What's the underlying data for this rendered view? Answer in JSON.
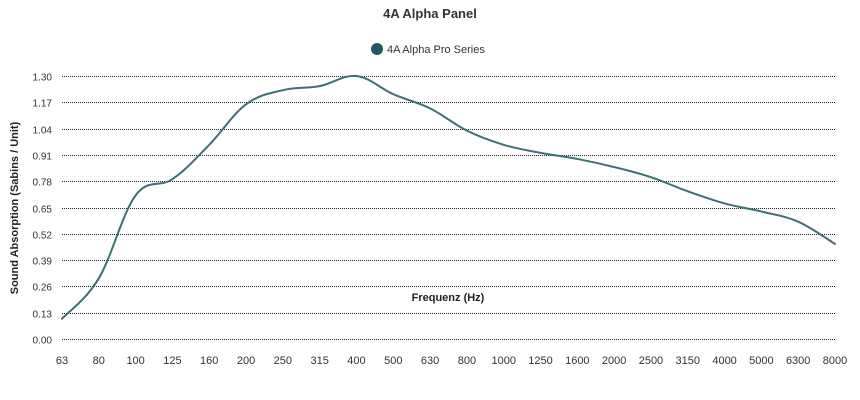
{
  "chart_data": {
    "type": "line",
    "title": "4A Alpha Panel",
    "xlabel": "Frequenz (Hz)",
    "ylabel": "Sound Absorption (Sabins / Unit)",
    "categories": [
      "63",
      "80",
      "100",
      "125",
      "160",
      "200",
      "250",
      "315",
      "400",
      "500",
      "630",
      "800",
      "1000",
      "1250",
      "1600",
      "2000",
      "2500",
      "3150",
      "4000",
      "5000",
      "6300",
      "8000"
    ],
    "x_scale": "log",
    "ylim": [
      0,
      1.3
    ],
    "y_ticks": [
      "0.00",
      "0.13",
      "0.26",
      "0.39",
      "0.52",
      "0.65",
      "0.78",
      "0.91",
      "1.04",
      "1.17",
      "1.30"
    ],
    "grid": true,
    "legend": {
      "position": "top-center",
      "entries": [
        "4A Alpha Pro Series"
      ]
    },
    "series": [
      {
        "name": "4A Alpha Pro Series",
        "color": "#3e6f75",
        "values": [
          0.1,
          0.3,
          0.71,
          0.79,
          0.96,
          1.16,
          1.23,
          1.25,
          1.3,
          1.21,
          1.14,
          1.03,
          0.96,
          0.92,
          0.89,
          0.85,
          0.8,
          0.73,
          0.67,
          0.63,
          0.58,
          0.47
        ]
      }
    ]
  }
}
